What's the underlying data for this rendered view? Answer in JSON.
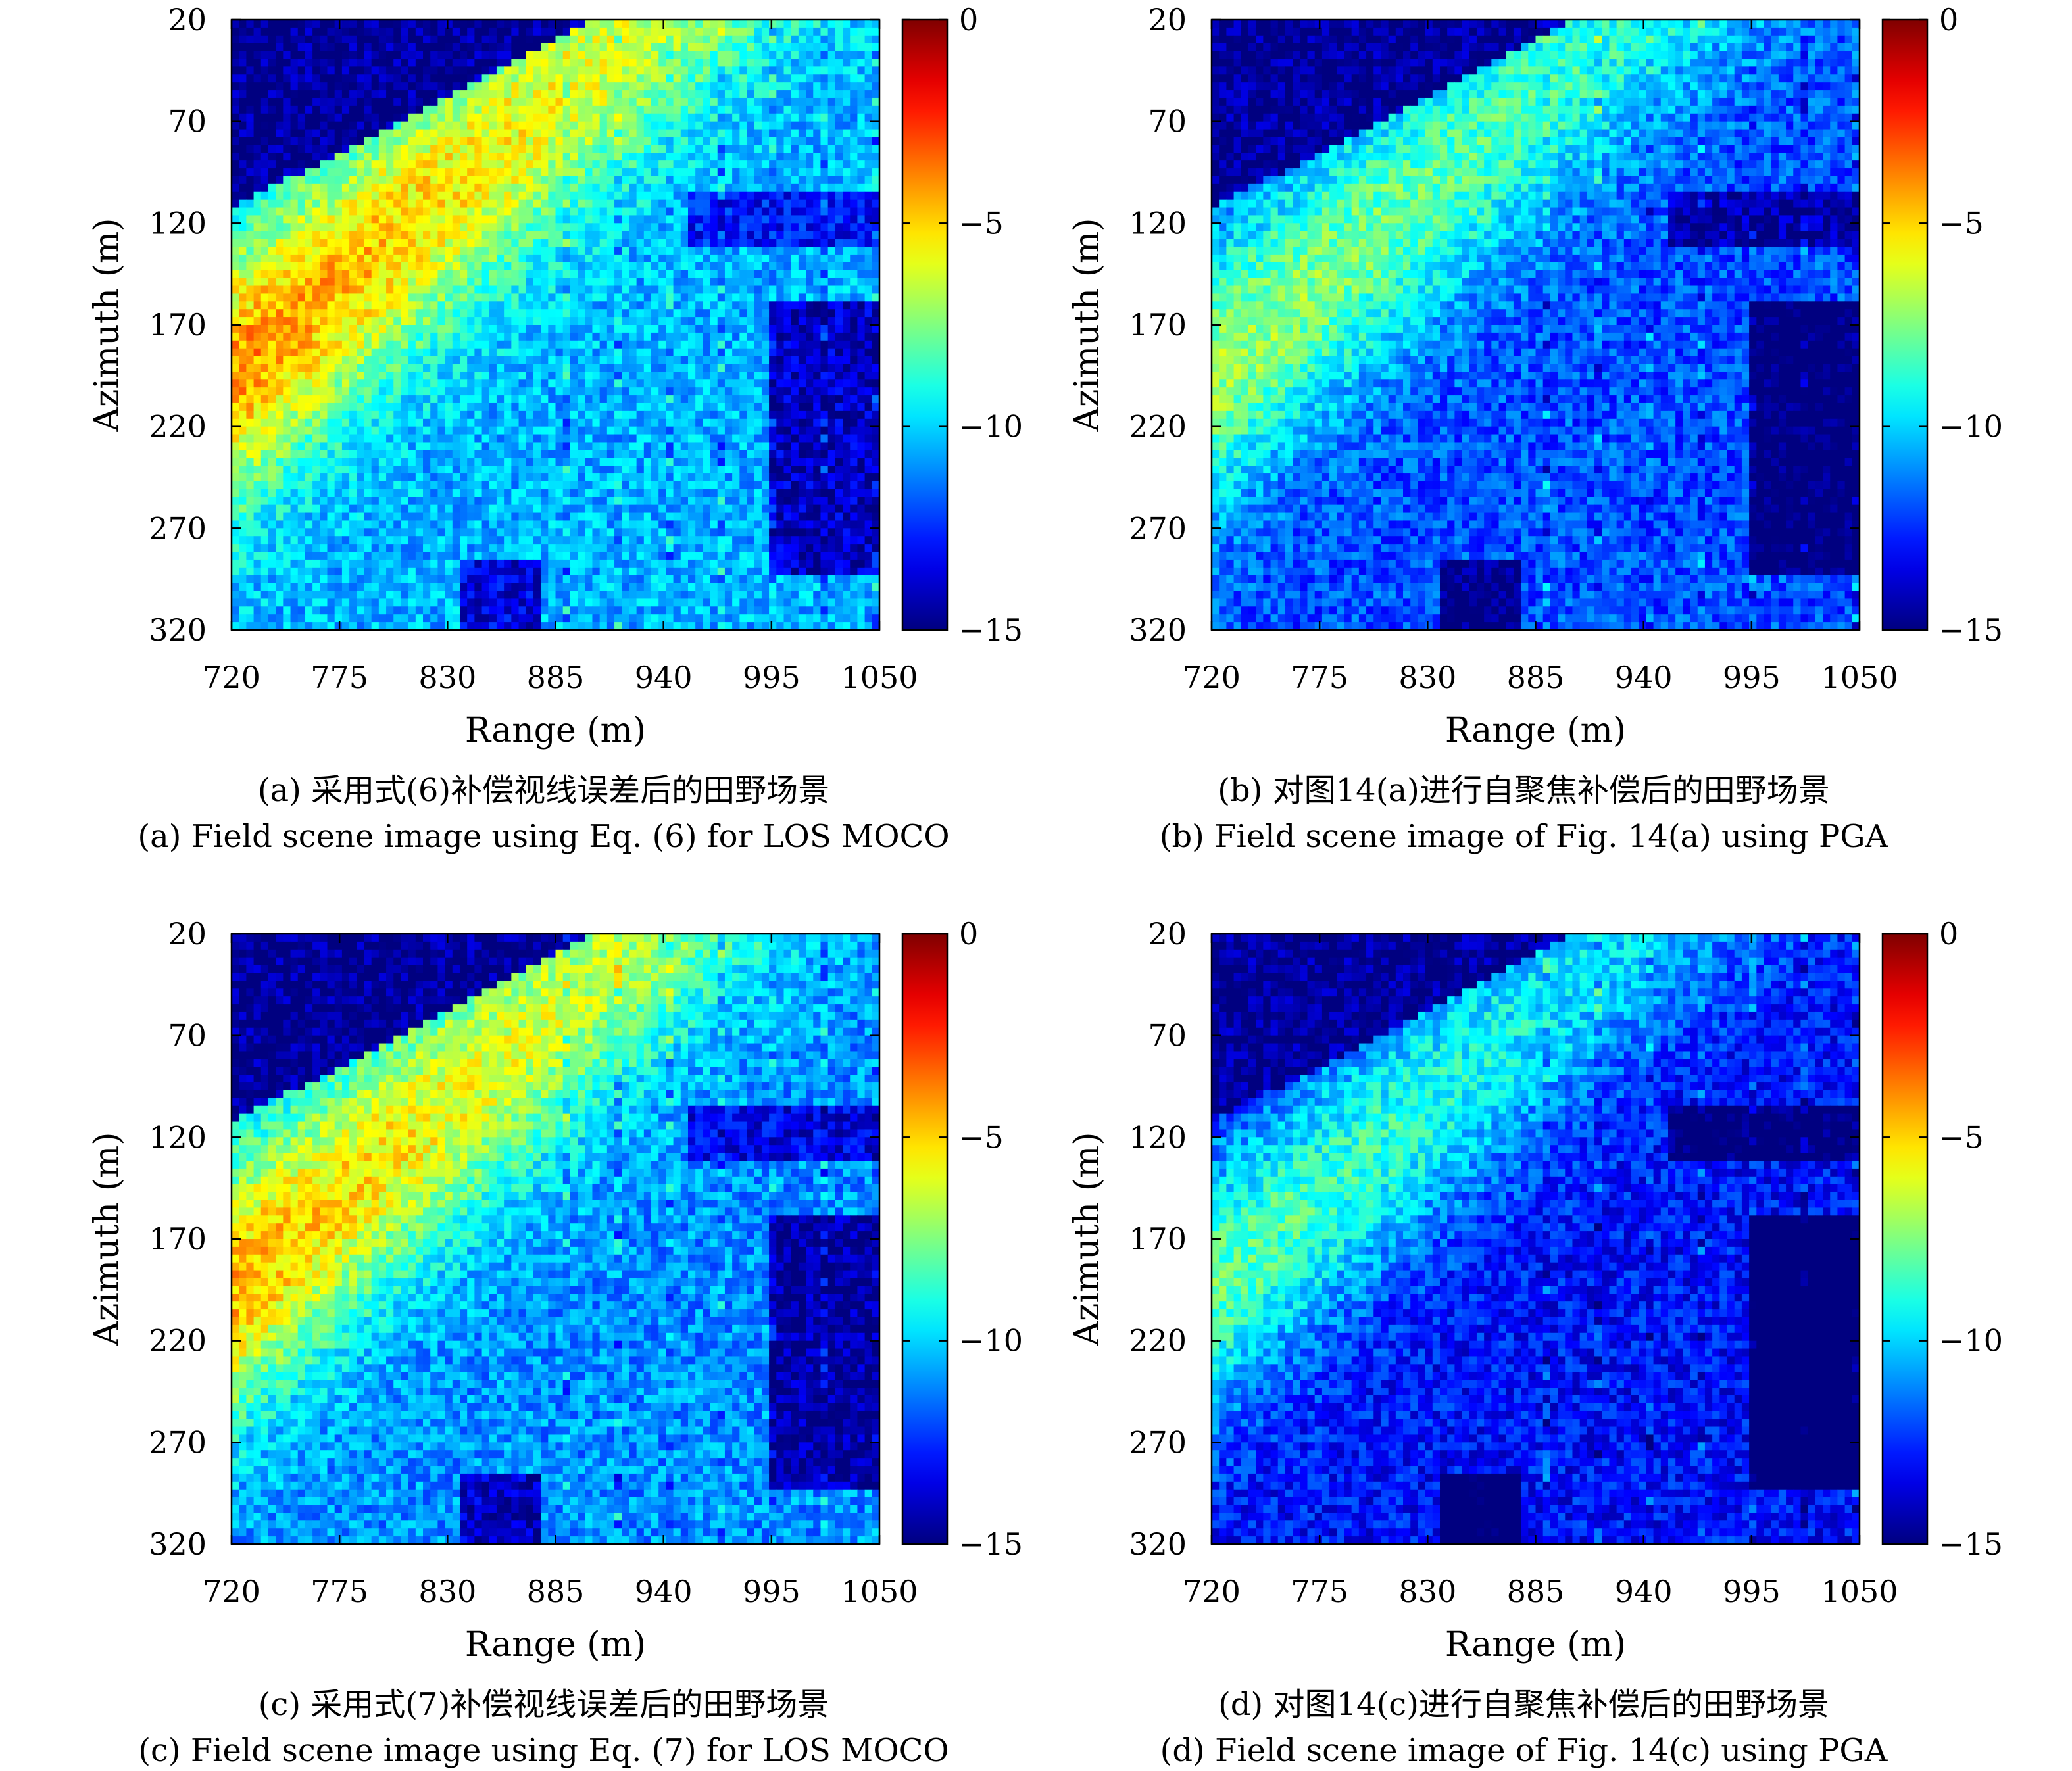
{
  "chart_data": [
    {
      "id": "a",
      "type": "heatmap",
      "xlabel": "Range (m)",
      "ylabel": "Azimuth (m)",
      "xticks": [
        720,
        775,
        830,
        885,
        940,
        995,
        1050
      ],
      "yticks": [
        20,
        70,
        120,
        170,
        220,
        270,
        320
      ],
      "xlim": [
        720,
        1050
      ],
      "ylim": [
        20,
        320
      ],
      "colorbar": {
        "ticks": [
          0,
          -5,
          -10,
          -15
        ],
        "range": [
          -15,
          0
        ],
        "colormap": "jet"
      },
      "bright_band_level": -4,
      "background_level": -10.5,
      "caption_cn": "(a) 采用式(6)补偿视线误差后的田野场景",
      "caption_en": "(a) Field scene image using Eq. (6) for LOS MOCO"
    },
    {
      "id": "b",
      "type": "heatmap",
      "xlabel": "Range (m)",
      "ylabel": "Azimuth (m)",
      "xticks": [
        720,
        775,
        830,
        885,
        940,
        995,
        1050
      ],
      "yticks": [
        20,
        70,
        120,
        170,
        220,
        270,
        320
      ],
      "xlim": [
        720,
        1050
      ],
      "ylim": [
        20,
        320
      ],
      "colorbar": {
        "ticks": [
          0,
          -5,
          -10,
          -15
        ],
        "range": [
          -15,
          0
        ],
        "colormap": "jet"
      },
      "bright_band_level": -7,
      "background_level": -12,
      "caption_cn": "(b) 对图14(a)进行自聚焦补偿后的田野场景",
      "caption_en": "(b) Field scene image of Fig. 14(a) using PGA"
    },
    {
      "id": "c",
      "type": "heatmap",
      "xlabel": "Range (m)",
      "ylabel": "Azimuth (m)",
      "xticks": [
        720,
        775,
        830,
        885,
        940,
        995,
        1050
      ],
      "yticks": [
        20,
        70,
        120,
        170,
        220,
        270,
        320
      ],
      "xlim": [
        720,
        1050
      ],
      "ylim": [
        20,
        320
      ],
      "colorbar": {
        "ticks": [
          0,
          -5,
          -10,
          -15
        ],
        "range": [
          -15,
          0
        ],
        "colormap": "jet"
      },
      "bright_band_level": -4.5,
      "background_level": -11,
      "caption_cn": "(c) 采用式(7)补偿视线误差后的田野场景",
      "caption_en": "(c) Field scene image using Eq. (7) for LOS MOCO"
    },
    {
      "id": "d",
      "type": "heatmap",
      "xlabel": "Range (m)",
      "ylabel": "Azimuth (m)",
      "xticks": [
        720,
        775,
        830,
        885,
        940,
        995,
        1050
      ],
      "yticks": [
        20,
        70,
        120,
        170,
        220,
        270,
        320
      ],
      "xlim": [
        720,
        1050
      ],
      "ylim": [
        20,
        320
      ],
      "colorbar": {
        "ticks": [
          0,
          -5,
          -10,
          -15
        ],
        "range": [
          -15,
          0
        ],
        "colormap": "jet"
      },
      "bright_band_level": -8,
      "background_level": -13,
      "caption_cn": "(d) 对图14(c)进行自聚焦补偿后的田野场景",
      "caption_en": "(d) Field scene image of Fig. 14(c) using PGA"
    }
  ]
}
